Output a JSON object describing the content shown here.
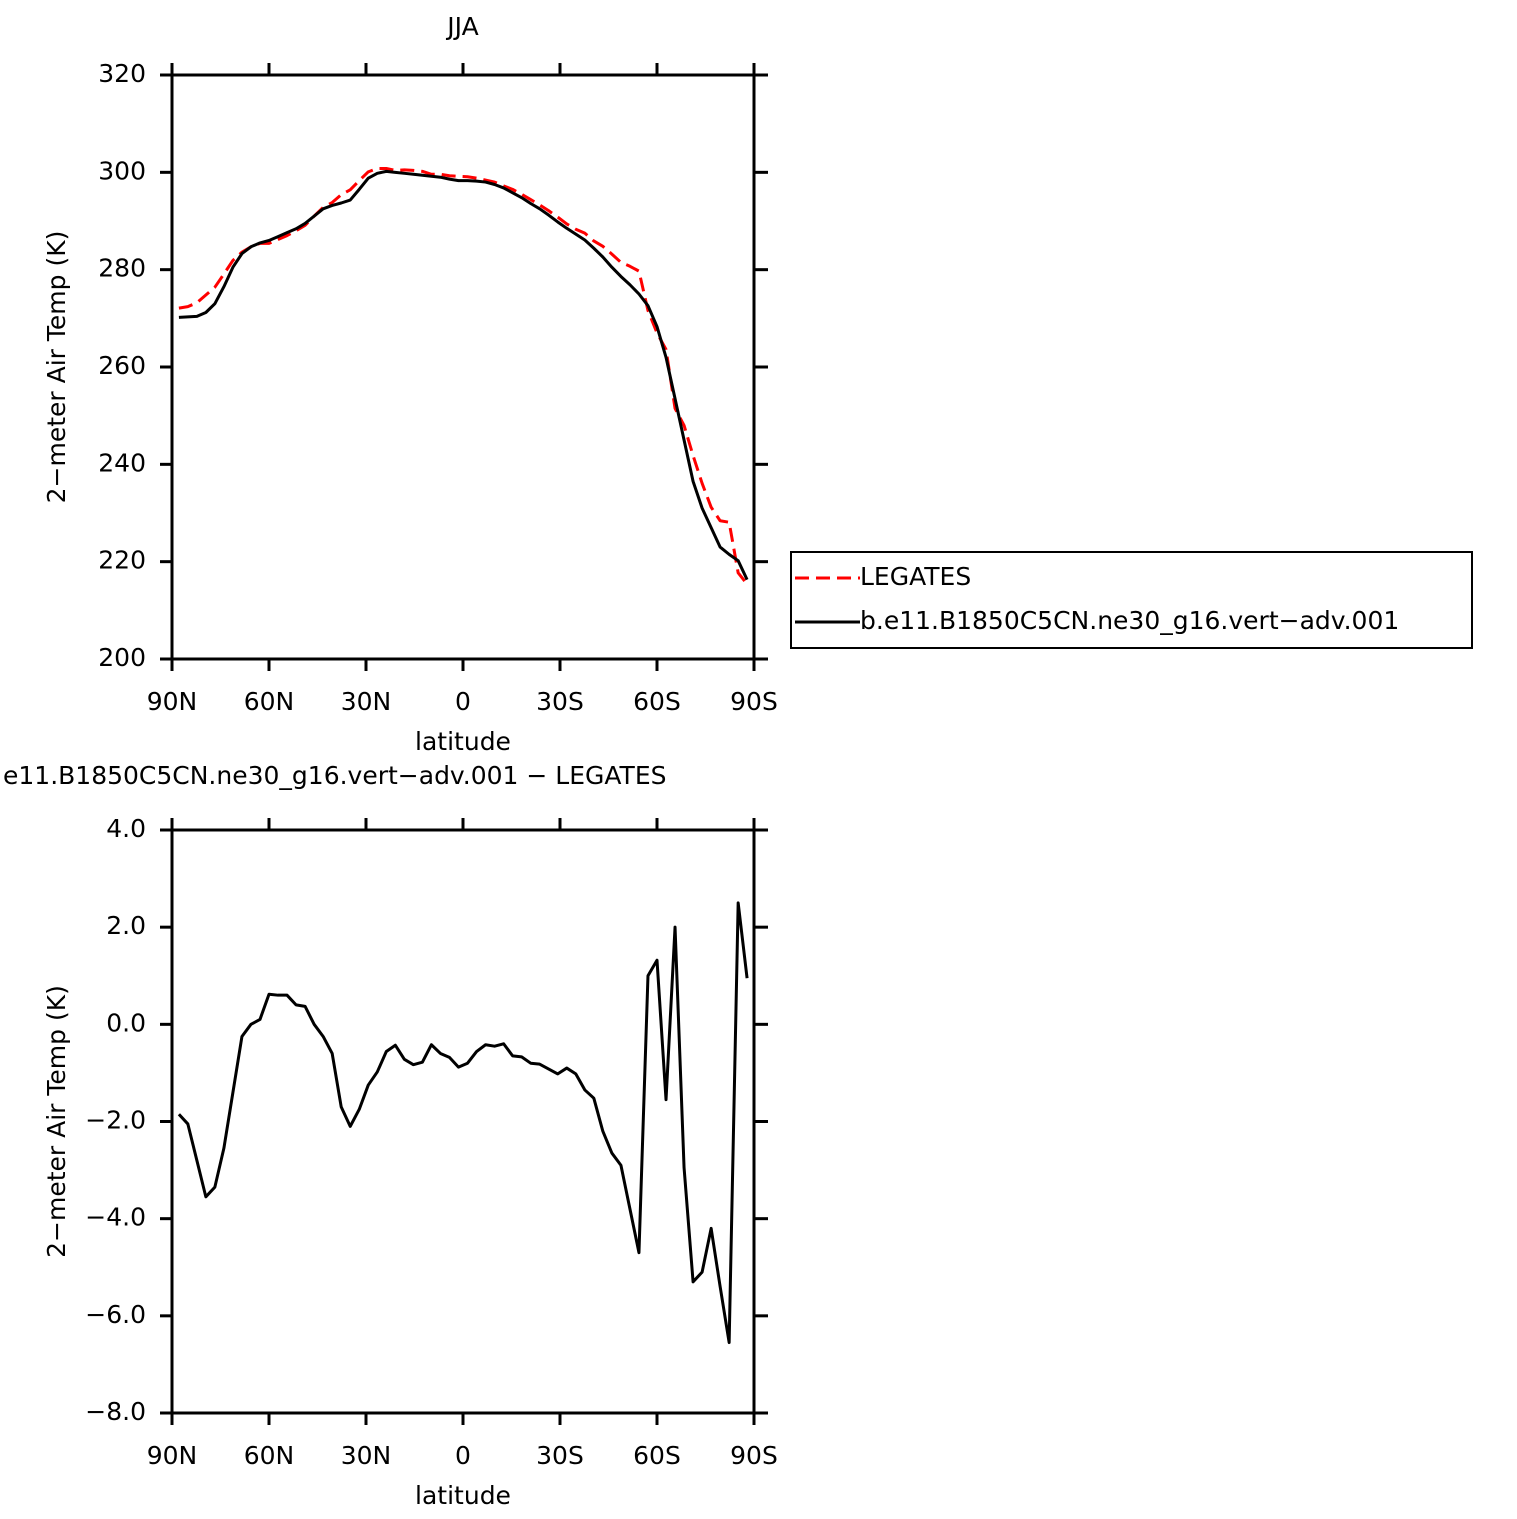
{
  "chart_data": [
    {
      "type": "line",
      "title": "JJA",
      "y_label": "2−meter Air Temp (K)",
      "x_label": "latitude",
      "xlim": [
        90,
        -90
      ],
      "ylim": [
        200,
        320
      ],
      "xticks": [
        {
          "value": 90,
          "label": "90N"
        },
        {
          "value": 60,
          "label": "60N"
        },
        {
          "value": 30,
          "label": "30N"
        },
        0,
        {
          "value": -30,
          "label": "30S"
        },
        {
          "value": -60,
          "label": "60S"
        },
        {
          "value": -90,
          "label": "90S"
        }
      ],
      "yticks": [
        200,
        220,
        240,
        260,
        280,
        300,
        320
      ],
      "legend": "outside right",
      "x": [
        87.86,
        85.1,
        82.31,
        79.53,
        76.74,
        73.95,
        71.16,
        68.37,
        65.58,
        62.79,
        60.0,
        57.21,
        54.42,
        51.63,
        48.84,
        46.04,
        43.25,
        40.46,
        37.67,
        34.88,
        32.09,
        29.3,
        26.51,
        23.72,
        20.93,
        18.14,
        15.35,
        12.56,
        9.77,
        6.98,
        4.19,
        1.4,
        -1.4,
        -4.19,
        -6.98,
        -9.77,
        -12.56,
        -15.35,
        -18.14,
        -20.93,
        -23.72,
        -26.51,
        -29.3,
        -32.09,
        -34.88,
        -37.67,
        -40.46,
        -43.25,
        -46.04,
        -48.84,
        -51.63,
        -54.42,
        -57.21,
        -60.0,
        -62.79,
        -65.58,
        -68.37,
        -71.16,
        -73.95,
        -76.74,
        -79.53,
        -82.31,
        -85.1,
        -87.86
      ],
      "series": [
        {
          "name": "LEGATES",
          "color": "#ff0000",
          "dash": "dashed",
          "values": [
            272.1,
            272.4,
            273.2,
            274.8,
            276.4,
            279.1,
            281.9,
            283.6,
            284.7,
            285.4,
            285.4,
            286.2,
            287.0,
            288.0,
            289.1,
            291.0,
            292.8,
            293.8,
            295.4,
            296.4,
            298.3,
            300.1,
            300.8,
            300.8,
            300.4,
            300.5,
            300.4,
            300.2,
            299.6,
            299.6,
            299.3,
            299.2,
            299.1,
            298.8,
            298.4,
            298.0,
            297.2,
            296.5,
            295.5,
            294.4,
            293.3,
            292.1,
            290.8,
            289.4,
            288.3,
            287.5,
            285.9,
            284.8,
            283.2,
            281.5,
            280.7,
            279.7,
            271.6,
            267.0,
            263.6,
            251.5,
            248.0,
            241.8,
            236.1,
            231.2,
            228.4,
            228.1,
            217.7,
            215.4
          ]
        },
        {
          "name": "b.e11.B1850C5CN.ne30_g16.vert−adv.001",
          "color": "#000000",
          "dash": "solid",
          "values": [
            270.2,
            270.3,
            270.4,
            271.2,
            273.0,
            276.5,
            280.5,
            283.3,
            284.7,
            285.5,
            286.0,
            286.8,
            287.6,
            288.4,
            289.5,
            291.0,
            292.5,
            293.2,
            293.7,
            294.3,
            296.5,
            298.8,
            299.8,
            300.2,
            300.0,
            299.8,
            299.6,
            299.4,
            299.2,
            299.0,
            298.6,
            298.3,
            298.3,
            298.2,
            298.0,
            297.5,
            296.8,
            295.8,
            294.8,
            293.6,
            292.5,
            291.2,
            289.8,
            288.5,
            287.3,
            286.1,
            284.4,
            282.6,
            280.5,
            278.6,
            276.9,
            275.0,
            272.6,
            268.3,
            262.0,
            253.5,
            245.0,
            236.5,
            231.0,
            227.0,
            223.0,
            221.5,
            220.2,
            216.3
          ]
        }
      ]
    },
    {
      "type": "line",
      "title": "e11.B1850C5CN.ne30_g16.vert−adv.001 − LEGATES",
      "y_label": "2−meter Air Temp (K)",
      "x_label": "latitude",
      "xlim": [
        90,
        -90
      ],
      "ylim": [
        -8,
        4
      ],
      "xticks": [
        {
          "value": 90,
          "label": "90N"
        },
        {
          "value": 60,
          "label": "60N"
        },
        {
          "value": 30,
          "label": "30N"
        },
        0,
        {
          "value": -30,
          "label": "30S"
        },
        {
          "value": -60,
          "label": "60S"
        },
        {
          "value": -90,
          "label": "90S"
        }
      ],
      "yticks": [
        {
          "value": -8,
          "label": "−8.0"
        },
        {
          "value": -6,
          "label": "−6.0"
        },
        {
          "value": -4,
          "label": "−4.0"
        },
        {
          "value": -2,
          "label": "−2.0"
        },
        {
          "value": 0,
          "label": "0.0"
        },
        {
          "value": 2,
          "label": "2.0"
        },
        {
          "value": 4,
          "label": "4.0"
        }
      ],
      "x": [
        87.86,
        85.1,
        82.31,
        79.53,
        76.74,
        73.95,
        71.16,
        68.37,
        65.58,
        62.79,
        60.0,
        57.21,
        54.42,
        51.63,
        48.84,
        46.04,
        43.25,
        40.46,
        37.67,
        34.88,
        32.09,
        29.3,
        26.51,
        23.72,
        20.93,
        18.14,
        15.35,
        12.56,
        9.77,
        6.98,
        4.19,
        1.4,
        -1.4,
        -4.19,
        -6.98,
        -9.77,
        -12.56,
        -15.35,
        -18.14,
        -20.93,
        -23.72,
        -26.51,
        -29.3,
        -32.09,
        -34.88,
        -37.67,
        -40.46,
        -43.25,
        -46.04,
        -48.84,
        -51.63,
        -54.42,
        -57.21,
        -60.0,
        -62.79,
        -65.58,
        -68.37,
        -71.16,
        -73.95,
        -76.74,
        -79.53,
        -82.31,
        -85.1,
        -87.86
      ],
      "color": "#000000",
      "values": [
        -1.85,
        -2.05,
        -2.8,
        -3.55,
        -3.35,
        -2.55,
        -1.4,
        -0.25,
        0.0,
        0.1,
        0.62,
        0.6,
        0.6,
        0.4,
        0.37,
        0.0,
        -0.25,
        -0.6,
        -1.7,
        -2.1,
        -1.75,
        -1.25,
        -0.98,
        -0.56,
        -0.43,
        -0.72,
        -0.83,
        -0.78,
        -0.42,
        -0.6,
        -0.68,
        -0.88,
        -0.8,
        -0.56,
        -0.42,
        -0.45,
        -0.4,
        -0.65,
        -0.67,
        -0.8,
        -0.82,
        -0.92,
        -1.02,
        -0.9,
        -1.02,
        -1.35,
        -1.52,
        -2.2,
        -2.65,
        -2.9,
        -3.8,
        -4.7,
        1.0,
        1.32,
        -1.55,
        2.0,
        -2.95,
        -5.3,
        -5.1,
        -4.2,
        -5.4,
        -6.55,
        2.5,
        0.95
      ]
    }
  ]
}
